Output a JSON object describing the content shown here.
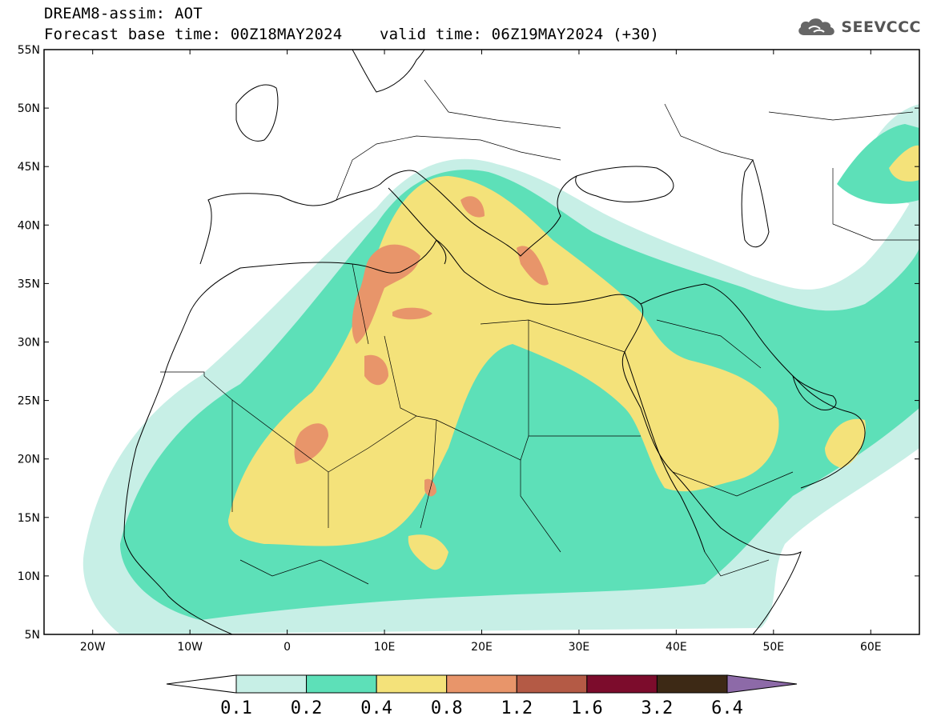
{
  "header": {
    "line1": "DREAM8-assim: AOT",
    "line2_left": "Forecast base time: 00Z18MAY2024",
    "line2_right": "valid time: 06Z19MAY2024 (+30)"
  },
  "logo": {
    "text": "SEEVCCC",
    "icon": "cloud-icon"
  },
  "map": {
    "lon_range": [
      -25,
      65
    ],
    "lat_range": [
      5,
      55
    ],
    "lat_ticks": [
      "55N",
      "50N",
      "45N",
      "40N",
      "35N",
      "30N",
      "25N",
      "20N",
      "15N",
      "10N",
      "5N"
    ],
    "lon_ticks": [
      "20W",
      "10W",
      "0",
      "10E",
      "20E",
      "30E",
      "40E",
      "50E",
      "60E"
    ]
  },
  "colorbar": {
    "labels": [
      "0.1",
      "0.2",
      "0.4",
      "0.8",
      "1.2",
      "1.6",
      "3.2",
      "6.4"
    ],
    "colors": [
      "#c7efe6",
      "#5de0b8",
      "#f4e27a",
      "#e8956a",
      "#b45a45",
      "#7c0c2c",
      "#3d2915",
      "#8d6aa8"
    ],
    "under_color": "#ffffff"
  }
}
